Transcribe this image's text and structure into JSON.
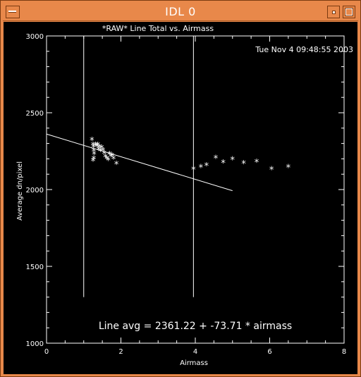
{
  "window": {
    "title": "IDL 0"
  },
  "plot": {
    "title": "*RAW* Line Total vs. Airmass",
    "timestamp": "Tue Nov  4 09:48:55 2003",
    "fit_label": "Line avg = 2361.22 + -73.71 * airmass"
  },
  "chart_data": {
    "type": "scatter",
    "title": "*RAW* Line Total vs. Airmass",
    "xlabel": "Airmass",
    "ylabel": "Average dn/pixel",
    "xlim": [
      0,
      8
    ],
    "ylim": [
      1000,
      3000
    ],
    "x_ticks": [
      0,
      2,
      4,
      6,
      8
    ],
    "y_ticks": [
      1000,
      1500,
      2000,
      2500,
      3000
    ],
    "grid": false,
    "series": [
      {
        "marker": "asterisk",
        "points": [
          [
            1.22,
            2320
          ],
          [
            1.25,
            2290
          ],
          [
            1.26,
            2275
          ],
          [
            1.27,
            2250
          ],
          [
            1.28,
            2230
          ],
          [
            1.27,
            2200
          ],
          [
            1.25,
            2185
          ],
          [
            1.32,
            2290
          ],
          [
            1.35,
            2280
          ],
          [
            1.38,
            2290
          ],
          [
            1.4,
            2260
          ],
          [
            1.42,
            2275
          ],
          [
            1.45,
            2250
          ],
          [
            1.48,
            2270
          ],
          [
            1.52,
            2255
          ],
          [
            1.55,
            2235
          ],
          [
            1.58,
            2210
          ],
          [
            1.62,
            2200
          ],
          [
            1.66,
            2190
          ],
          [
            1.7,
            2230
          ],
          [
            1.73,
            2215
          ],
          [
            1.76,
            2220
          ],
          [
            1.8,
            2200
          ],
          [
            1.88,
            2165
          ],
          [
            3.95,
            2130
          ],
          [
            4.15,
            2145
          ],
          [
            4.3,
            2155
          ],
          [
            4.55,
            2205
          ],
          [
            4.75,
            2175
          ],
          [
            5.0,
            2195
          ],
          [
            5.3,
            2170
          ],
          [
            5.65,
            2180
          ],
          [
            6.05,
            2130
          ],
          [
            6.5,
            2145
          ]
        ]
      }
    ],
    "fit_line": {
      "intercept": 2361.22,
      "slope": -73.71,
      "x_range": [
        0,
        5.0
      ]
    },
    "vertical_lines": [
      1.0,
      3.95
    ]
  }
}
